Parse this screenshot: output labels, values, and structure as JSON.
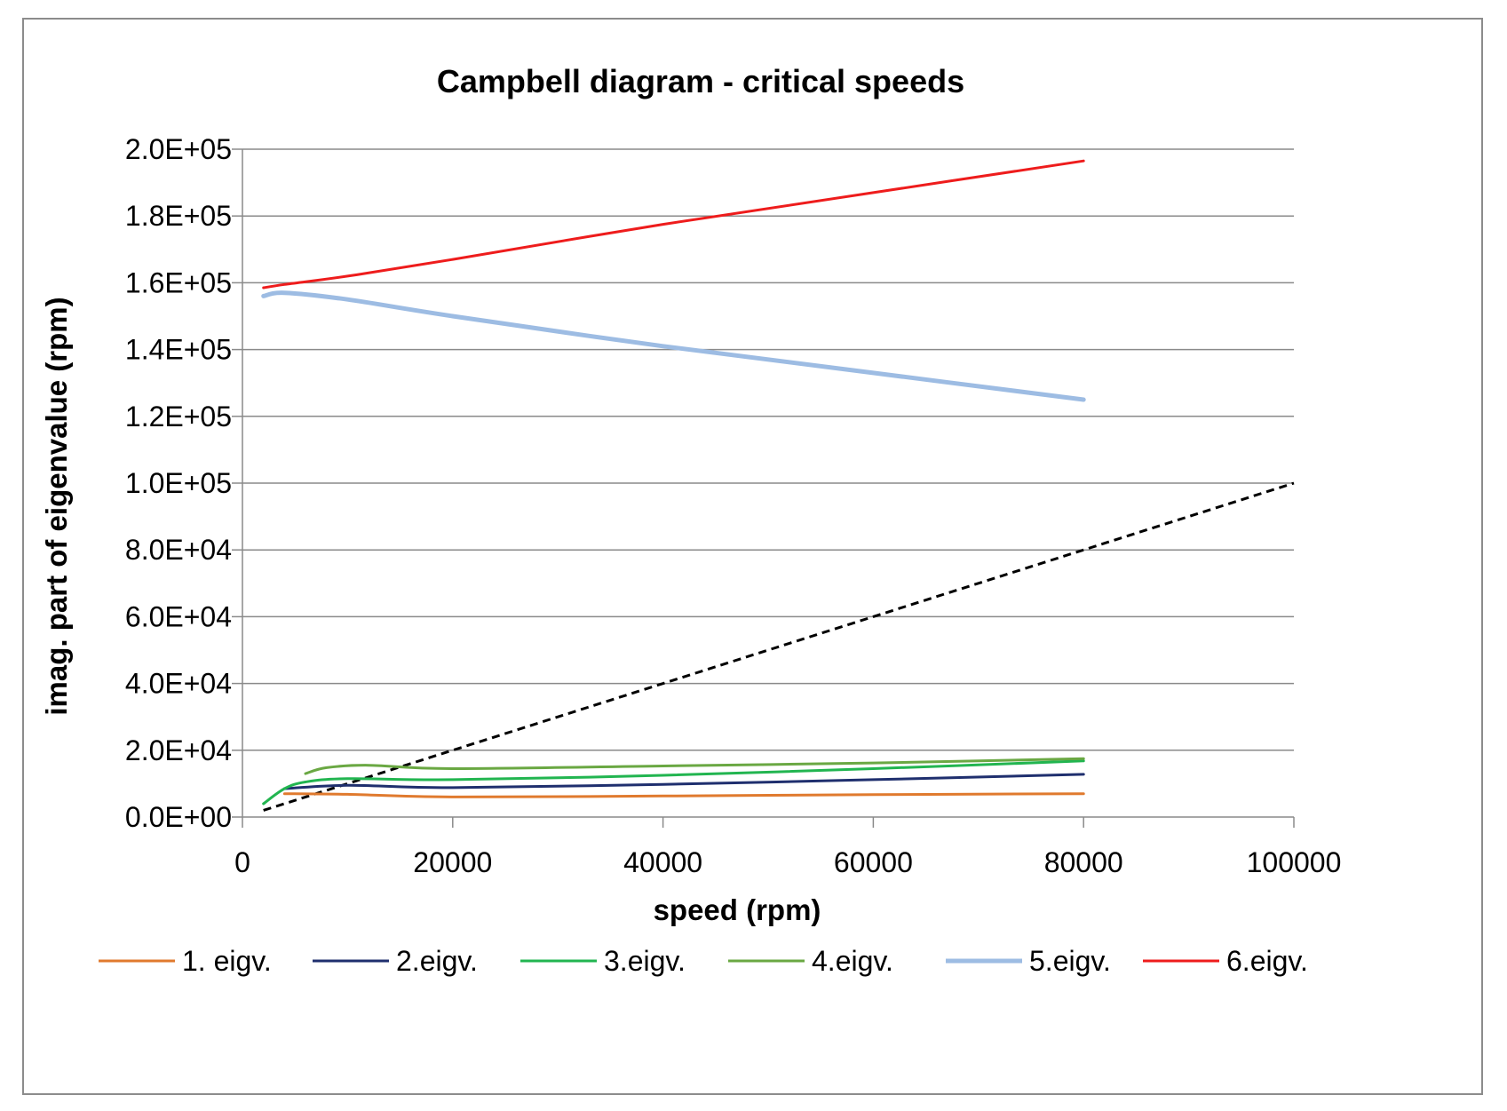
{
  "chart_data": {
    "type": "line",
    "title": "Campbell diagram - critical speeds",
    "xlabel": "speed (rpm)",
    "ylabel": "imag. part of eigenvalue (rpm)",
    "xlim": [
      0,
      100000
    ],
    "ylim": [
      0,
      200000
    ],
    "x_ticks": [
      "0",
      "20000",
      "40000",
      "60000",
      "80000",
      "100000"
    ],
    "y_ticks": [
      "0.0E+00",
      "2.0E+04",
      "4.0E+04",
      "6.0E+04",
      "8.0E+04",
      "1.0E+05",
      "1.2E+05",
      "1.4E+05",
      "1.6E+05",
      "1.8E+05",
      "2.0E+05"
    ],
    "grid": "horizontal",
    "legend_position": "bottom",
    "series": [
      {
        "name": "1. eigv.",
        "color": "#E07A2E",
        "points": [
          [
            4000,
            7000
          ],
          [
            10000,
            6800
          ],
          [
            20000,
            6000
          ],
          [
            40000,
            6300
          ],
          [
            60000,
            6700
          ],
          [
            80000,
            7000
          ]
        ]
      },
      {
        "name": "2.eigv.",
        "color": "#1F2F6E",
        "points": [
          [
            4000,
            8500
          ],
          [
            10000,
            9500
          ],
          [
            20000,
            8800
          ],
          [
            40000,
            9800
          ],
          [
            60000,
            11200
          ],
          [
            80000,
            12800
          ]
        ]
      },
      {
        "name": "3.eigv.",
        "color": "#22B550",
        "points": [
          [
            2000,
            4000
          ],
          [
            4000,
            8500
          ],
          [
            6000,
            10500
          ],
          [
            10000,
            11500
          ],
          [
            20000,
            11200
          ],
          [
            40000,
            12500
          ],
          [
            60000,
            14500
          ],
          [
            80000,
            16800
          ]
        ]
      },
      {
        "name": "4.eigv.",
        "color": "#6AA843",
        "points": [
          [
            6000,
            13000
          ],
          [
            8000,
            14800
          ],
          [
            12000,
            15500
          ],
          [
            20000,
            14500
          ],
          [
            40000,
            15300
          ],
          [
            60000,
            16200
          ],
          [
            80000,
            17500
          ]
        ]
      },
      {
        "name": "5.eigv.",
        "color": "#9DBCE3",
        "points": [
          [
            2000,
            156000
          ],
          [
            4000,
            157000
          ],
          [
            10000,
            155000
          ],
          [
            20000,
            150000
          ],
          [
            40000,
            141000
          ],
          [
            60000,
            133000
          ],
          [
            80000,
            125000
          ]
        ]
      },
      {
        "name": "6.eigv.",
        "color": "#EE1C1C",
        "points": [
          [
            2000,
            158500
          ],
          [
            4000,
            159500
          ],
          [
            10000,
            162000
          ],
          [
            20000,
            167000
          ],
          [
            40000,
            177500
          ],
          [
            60000,
            187000
          ],
          [
            80000,
            196500
          ]
        ]
      }
    ],
    "reference_line": {
      "color": "#000000",
      "style": "dashed",
      "points": [
        [
          2000,
          2000
        ],
        [
          100000,
          100000
        ]
      ]
    }
  }
}
